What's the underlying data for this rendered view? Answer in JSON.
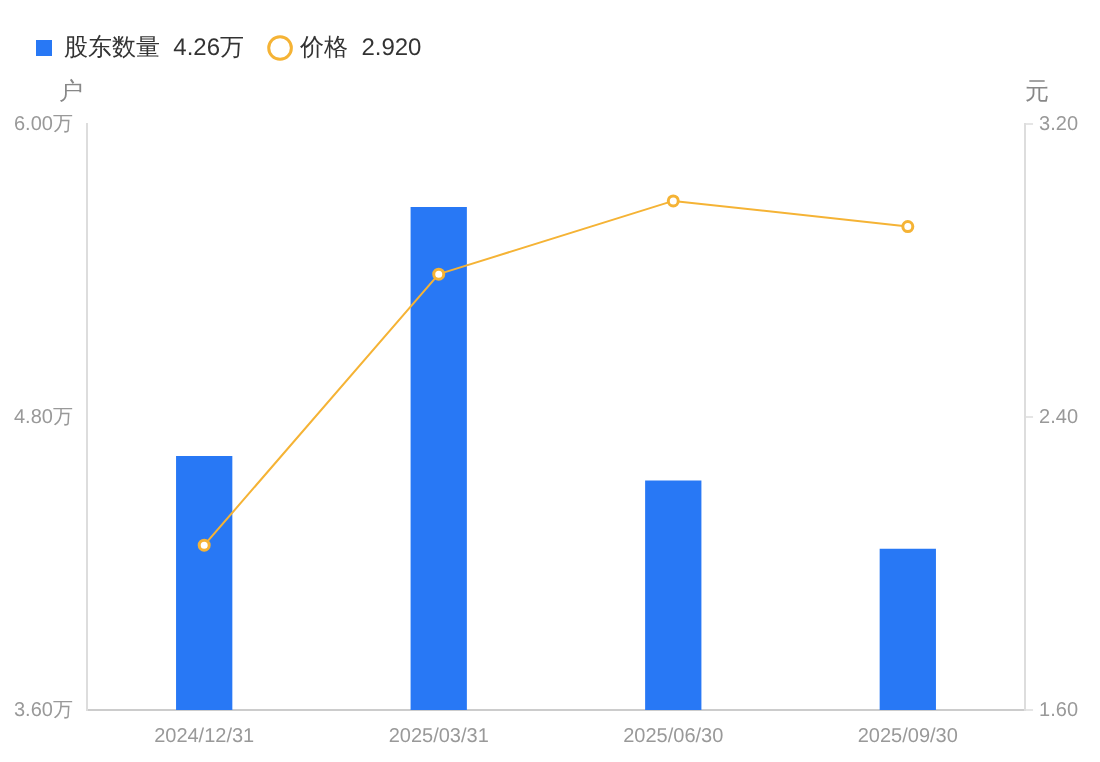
{
  "chart_data": {
    "type": "bar",
    "categories": [
      "2024/12/31",
      "2025/03/31",
      "2025/06/30",
      "2025/09/30"
    ],
    "series": [
      {
        "name": "股东数量  4.26万",
        "color": "#2878f5",
        "values": [
          4.64,
          5.66,
          4.54,
          4.26
        ]
      },
      {
        "name": "价格  2.920",
        "type": "line",
        "axis": "y2",
        "color": "#f5b335",
        "values": [
          2.05,
          2.79,
          2.99,
          2.92
        ]
      }
    ],
    "ylabel": "户",
    "y2label": "元",
    "ylim": [
      3.6,
      6.0
    ],
    "yticks": [
      {
        "value": 3.6,
        "label": "3.60万"
      },
      {
        "value": 4.8,
        "label": "4.80万"
      },
      {
        "value": 6.0,
        "label": "6.00万"
      }
    ],
    "y2lim": [
      1.6,
      3.2
    ],
    "y2ticks": [
      {
        "value": 1.6,
        "label": "1.60"
      },
      {
        "value": 2.4,
        "label": "2.40"
      },
      {
        "value": 3.2,
        "label": "3.20"
      }
    ],
    "legend": "top left",
    "marker": "circle",
    "line_style": "solid",
    "grid": false
  }
}
